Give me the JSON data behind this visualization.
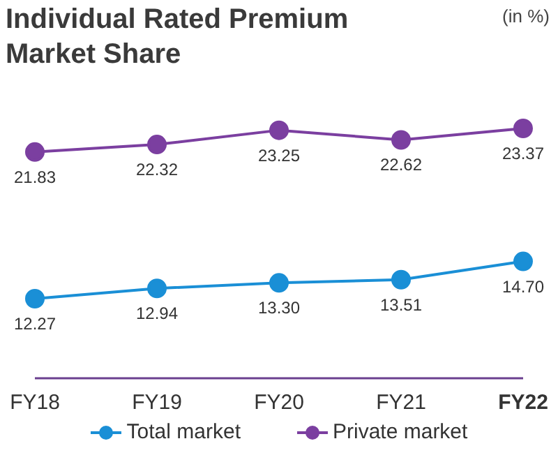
{
  "chart_data": {
    "type": "line",
    "title": "Individual Rated Premium Market Share",
    "annotations": [
      "(in %)"
    ],
    "categories": [
      "FY18",
      "FY19",
      "FY20",
      "FY21",
      "FY22"
    ],
    "legend": "bottom",
    "marker": "circle",
    "series": [
      {
        "name": "Total market",
        "color": "#1a8fd6",
        "values": [
          12.27,
          12.94,
          13.3,
          13.51,
          14.7
        ],
        "value_labels": [
          "12.27",
          "12.94",
          "13.30",
          "13.51",
          "14.70"
        ]
      },
      {
        "name": "Private market",
        "color": "#7b3fa0",
        "values": [
          21.83,
          22.32,
          23.25,
          22.62,
          23.37
        ],
        "value_labels": [
          "21.83",
          "22.32",
          "23.25",
          "22.62",
          "23.37"
        ]
      }
    ]
  }
}
